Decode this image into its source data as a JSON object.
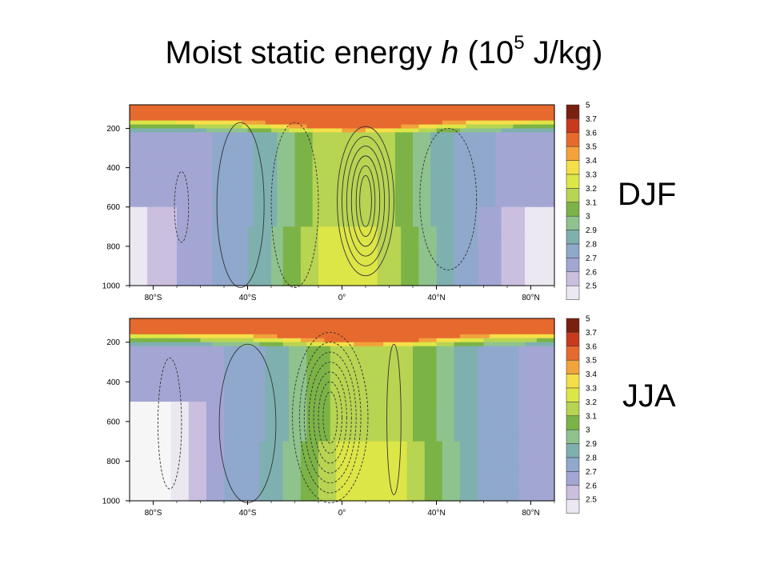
{
  "title": {
    "main": "Moist static energy ",
    "var": "h",
    "unit_open": " (10",
    "unit_exp": "5",
    "unit_close": " J/kg)"
  },
  "chart_data": [
    {
      "type": "heatmap",
      "panel_label": "DJF",
      "x_ticks": [
        "80°S",
        "40°S",
        "0°",
        "40°N",
        "80°N"
      ],
      "x_tick_values": [
        -80,
        -40,
        0,
        40,
        80
      ],
      "y_ticks": [
        "200",
        "400",
        "600",
        "800",
        "1000"
      ],
      "y_tick_values": [
        200,
        400,
        600,
        800,
        1000
      ],
      "xlim": [
        -90,
        90
      ],
      "ylim": [
        1000,
        80
      ],
      "y_reversed": true,
      "colorbar_levels": [
        "5",
        "3.7",
        "3.6",
        "3.5",
        "3.4",
        "3.3",
        "3.2",
        "3.1",
        "3",
        "2.9",
        "2.8",
        "2.7",
        "2.6",
        "2.5"
      ],
      "field": {
        "surface_peak_lat": 10,
        "contour_overlay": "mean meridional streamfunction (solid positive, dashed negative)"
      }
    },
    {
      "type": "heatmap",
      "panel_label": "JJA",
      "x_ticks": [
        "80°S",
        "40°S",
        "0°",
        "40°N",
        "80°N"
      ],
      "x_tick_values": [
        -80,
        -40,
        0,
        40,
        80
      ],
      "y_ticks": [
        "200",
        "400",
        "600",
        "800",
        "1000"
      ],
      "y_tick_values": [
        200,
        400,
        600,
        800,
        1000
      ],
      "xlim": [
        -90,
        90
      ],
      "ylim": [
        1000,
        80
      ],
      "y_reversed": true,
      "colorbar_levels": [
        "5",
        "3.7",
        "3.6",
        "3.5",
        "3.4",
        "3.3",
        "3.2",
        "3.1",
        "3",
        "2.9",
        "2.8",
        "2.7",
        "2.6",
        "2.5"
      ],
      "field": {
        "surface_peak_lat": 10,
        "contour_overlay": "mean meridional streamfunction (solid positive, dashed negative)"
      }
    }
  ],
  "colors": {
    "levels": [
      "#7a2010",
      "#c83a1e",
      "#e66a2e",
      "#f3a23c",
      "#f5df48",
      "#dde647",
      "#b7d452",
      "#7cb347",
      "#8fc38e",
      "#7fb0b0",
      "#8fa8cc",
      "#a3a6d3",
      "#cbbfe0",
      "#ece8f2",
      "#f6f6f6"
    ]
  }
}
